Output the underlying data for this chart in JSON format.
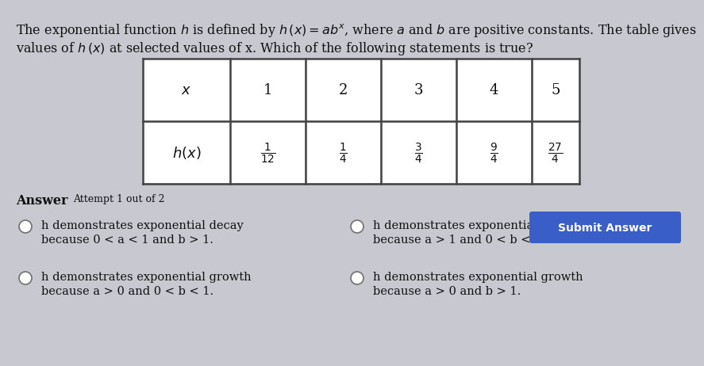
{
  "background_color": "#c8c8d0",
  "text_color": "#111111",
  "table_border_color": "#444444",
  "table_bg": "#f0f0f0",
  "submit_button_color": "#3a5ec8",
  "submit_button_text_color": "#ffffff",
  "title_line1": "The exponential function $h$ is defined by $h\\,(x) = ab^x$, where $a$ and $b$ are positive constants. The table gives",
  "title_line2": "values of $h\\,(x)$ at selected values of x. Which of the following statements is true?",
  "table_x_values": [
    "1",
    "2",
    "3",
    "4",
    "5"
  ],
  "answer_label": "Answer",
  "attempt_label": "Attempt 1 out of 2",
  "options": [
    {
      "line1": "h demonstrates exponential decay",
      "line2": "because 0 < a < 1 and b > 1."
    },
    {
      "line1": "h demonstrates exponential decay",
      "line2": "because a > 1 and 0 < b < 1."
    },
    {
      "line1": "h demonstrates exponential growth",
      "line2": "because a > 0 and 0 < b < 1."
    },
    {
      "line1": "h demonstrates exponential growth",
      "line2": "because a > 0 and b > 1."
    }
  ],
  "submit_button_text": "Submit Answer"
}
